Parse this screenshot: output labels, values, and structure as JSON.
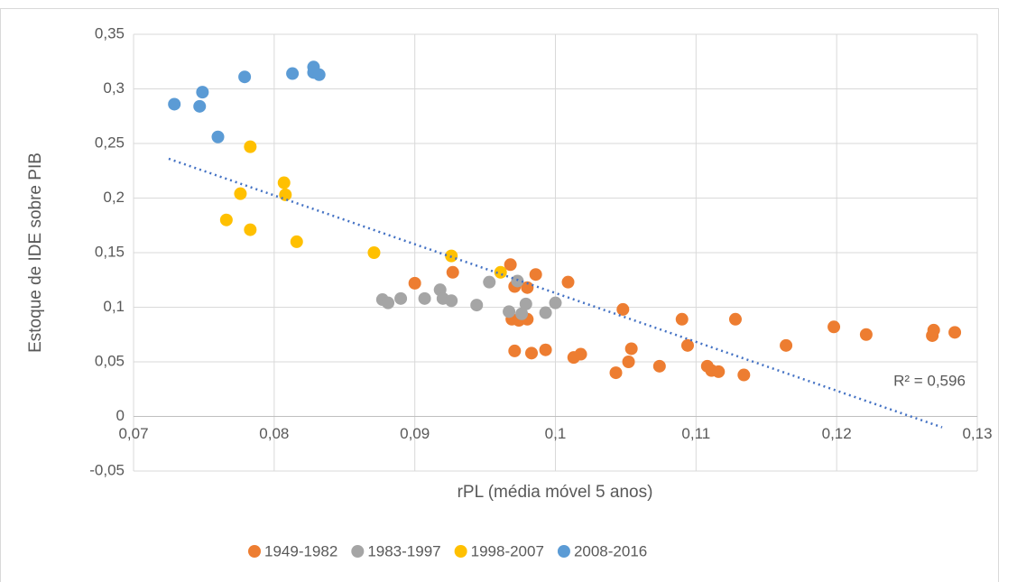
{
  "chart_data": {
    "type": "scatter",
    "x_label": "rPL (média móvel 5 anos)",
    "y_label": "Estoque de IDE sobre PIB",
    "xlim": [
      0.07,
      0.13
    ],
    "ylim": [
      -0.05,
      0.35
    ],
    "xticks": [
      {
        "value": 0.07,
        "label": "0,07"
      },
      {
        "value": 0.08,
        "label": "0,08"
      },
      {
        "value": 0.09,
        "label": "0,09"
      },
      {
        "value": 0.1,
        "label": "0,1"
      },
      {
        "value": 0.11,
        "label": "0,11"
      },
      {
        "value": 0.12,
        "label": "0,12"
      },
      {
        "value": 0.13,
        "label": "0,13"
      }
    ],
    "yticks": [
      {
        "value": -0.05,
        "label": "-0,05"
      },
      {
        "value": 0,
        "label": "0"
      },
      {
        "value": 0.05,
        "label": "0,05"
      },
      {
        "value": 0.1,
        "label": "0,1"
      },
      {
        "value": 0.15,
        "label": "0,15"
      },
      {
        "value": 0.2,
        "label": "0,2"
      },
      {
        "value": 0.25,
        "label": "0,25"
      },
      {
        "value": 0.3,
        "label": "0,3"
      },
      {
        "value": 0.35,
        "label": "0,35"
      }
    ],
    "grid": true,
    "legend": "bottom",
    "series": [
      {
        "name": "1949-1982",
        "color": "#ed7d31",
        "x": [
          0.09,
          0.0927,
          0.0968,
          0.0971,
          0.0969,
          0.0974,
          0.098,
          0.098,
          0.0986,
          0.0971,
          0.0983,
          0.0993,
          0.1009,
          0.1013,
          0.1018,
          0.1043,
          0.1048,
          0.1052,
          0.1054,
          0.1074,
          0.109,
          0.1094,
          0.1108,
          0.1111,
          0.1116,
          0.1128,
          0.1134,
          0.1164,
          0.1198,
          0.1221,
          0.1268,
          0.1269,
          0.1284
        ],
        "values": [
          0.122,
          0.132,
          0.139,
          0.119,
          0.089,
          0.088,
          0.089,
          0.118,
          0.13,
          0.06,
          0.058,
          0.061,
          0.123,
          0.054,
          0.057,
          0.04,
          0.098,
          0.05,
          0.062,
          0.046,
          0.089,
          0.065,
          0.046,
          0.042,
          0.041,
          0.089,
          0.038,
          0.065,
          0.082,
          0.075,
          0.074,
          0.079,
          0.077
        ]
      },
      {
        "name": "1983-1997",
        "color": "#a5a5a5",
        "x": [
          0.0877,
          0.0881,
          0.089,
          0.0907,
          0.0918,
          0.092,
          0.0926,
          0.0944,
          0.0953,
          0.0967,
          0.0973,
          0.0976,
          0.0979,
          0.0993,
          0.1
        ],
        "values": [
          0.107,
          0.104,
          0.108,
          0.108,
          0.116,
          0.108,
          0.106,
          0.102,
          0.123,
          0.096,
          0.124,
          0.094,
          0.103,
          0.095,
          0.104
        ]
      },
      {
        "name": "1998-2007",
        "color": "#ffc000",
        "x": [
          0.0783,
          0.0766,
          0.0776,
          0.0783,
          0.0807,
          0.0808,
          0.0816,
          0.0871,
          0.0926,
          0.0961
        ],
        "values": [
          0.247,
          0.18,
          0.204,
          0.171,
          0.214,
          0.203,
          0.16,
          0.15,
          0.147,
          0.132
        ]
      },
      {
        "name": "2008-2016",
        "color": "#5b9bd5",
        "x": [
          0.0729,
          0.0747,
          0.0749,
          0.076,
          0.0779,
          0.0813,
          0.0828,
          0.0828,
          0.0832
        ],
        "values": [
          0.286,
          0.284,
          0.297,
          0.256,
          0.311,
          0.314,
          0.32,
          0.315,
          0.313
        ]
      }
    ],
    "trendline": {
      "color": "#4472c4",
      "x": [
        0.0725,
        0.1275
      ],
      "values": [
        0.236,
        -0.01
      ],
      "annotation": "R² = 0,596"
    }
  }
}
